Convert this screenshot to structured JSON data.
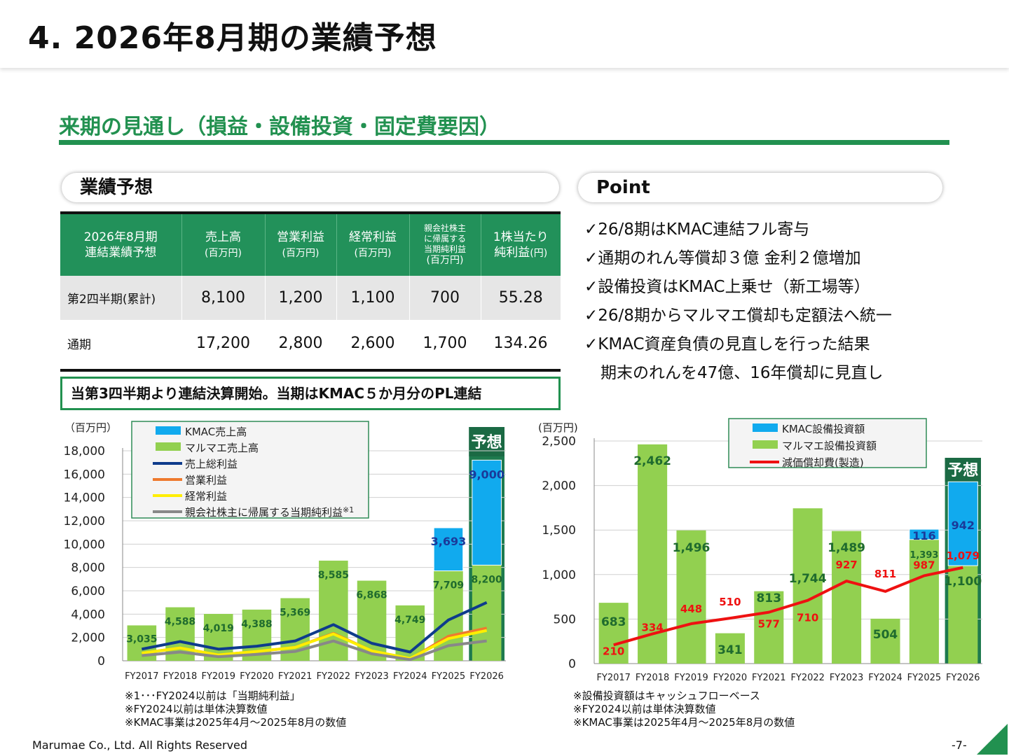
{
  "page_title": "4.  2026年8月期の業績予想",
  "section_title": "来期の見通し（損益・設備投資・固定費要因）",
  "forecast_heading": "業績予想",
  "point_heading": "Point",
  "table": {
    "header": {
      "c0a": "2026年8月期",
      "c0b": "連結業績予想",
      "c1": "売上高",
      "c2": "営業利益",
      "c3": "経常利益",
      "c4a": "親会社株主",
      "c4b": "に帰属する",
      "c4c": "当期純利益",
      "c5a": "1株当たり",
      "c5b": "純利益",
      "unit_million": "(百万円)",
      "unit_yen": "(円)"
    },
    "rows": [
      {
        "label": "第2四半期(累計)",
        "sales": "8,100",
        "op": "1,200",
        "ord": "1,100",
        "net": "700",
        "eps": "55.28"
      },
      {
        "label": "通期",
        "sales": "17,200",
        "op": "2,800",
        "ord": "2,600",
        "net": "1,700",
        "eps": "134.26"
      }
    ]
  },
  "note_box": "当第3四半期より連結決算開始。当期はKMAC５か月分のPL連結",
  "points": [
    "✓26/8期はKMAC連結フル寄与",
    "✓通期のれん等償却３億 金利２億増加",
    "✓設備投資はKMAC上乗せ（新工場等）",
    "✓26/8期からマルマエ償却も定額法へ統一",
    "✓KMAC資産負債の見直しを行った結果",
    "　期末のれんを47億、16年償却に見直し"
  ],
  "footnotes_left": [
    "※1･･･FY2024以前は「当期純利益」",
    "※FY2024以前は単体決算数値",
    "※KMAC事業は2025年4月～2025年8月の数値"
  ],
  "footnotes_right": [
    "※設備投資額はキャッシュフローベース",
    "※FY2024以前は単体決算数値",
    "※KMAC事業は2025年4月～2025年8月の数値"
  ],
  "copyright": "Marumae Co., Ltd. All Rights Reserved",
  "page_number": "-7-",
  "colors": {
    "brand_green": "#229150",
    "bar_green": "#92d050",
    "bar_blue": "#11aaee",
    "forecast_bg": "#1e7a4e"
  },
  "chart_data": [
    {
      "type": "bar",
      "unit": "（百万円）",
      "ylim": [
        0,
        18000
      ],
      "yticks": [
        "0",
        "2,000",
        "4,000",
        "6,000",
        "8,000",
        "10,000",
        "12,000",
        "14,000",
        "16,000",
        "18,000"
      ],
      "categories": [
        "FY2017",
        "FY2018",
        "FY2019",
        "FY2020",
        "FY2021",
        "FY2022",
        "FY2023",
        "FY2024",
        "FY2025",
        "FY2026"
      ],
      "forecast_label": "予想",
      "legend_position": "top-left",
      "series": [
        {
          "name": "KMAC売上高",
          "kind": "bar",
          "color": "#11aaee",
          "values": [
            null,
            null,
            null,
            null,
            null,
            null,
            null,
            null,
            3693,
            9000
          ],
          "labels": [
            "",
            "",
            "",
            "",
            "",
            "",
            "",
            "",
            "3,693",
            "9,000"
          ]
        },
        {
          "name": "マルマエ売上高",
          "kind": "bar",
          "color": "#92d050",
          "values": [
            3035,
            4588,
            4019,
            4388,
            5369,
            8585,
            6868,
            4749,
            7709,
            8200
          ],
          "labels": [
            "3,035",
            "4,588",
            "4,019",
            "4,388",
            "5,369",
            "8,585",
            "6,868",
            "4,749",
            "7,709",
            "8,200"
          ]
        },
        {
          "name": "売上総利益",
          "kind": "line",
          "color": "#0e3b8c",
          "values": [
            1000,
            1650,
            1000,
            1250,
            1700,
            3100,
            1500,
            750,
            3500,
            5000
          ]
        },
        {
          "name": "営業利益",
          "kind": "line",
          "color": "#ee7a2e",
          "values": [
            650,
            1100,
            500,
            800,
            1150,
            2350,
            850,
            150,
            2100,
            2800
          ]
        },
        {
          "name": "経常利益",
          "kind": "line",
          "color": "#ffee00",
          "values": [
            650,
            1100,
            500,
            800,
            1150,
            2300,
            850,
            200,
            1900,
            2600
          ]
        },
        {
          "name": "親会社株主に帰属する当期純利益",
          "legend_note": "※1",
          "kind": "line",
          "color": "#888888",
          "values": [
            450,
            750,
            350,
            550,
            800,
            1700,
            600,
            100,
            1300,
            1700
          ]
        }
      ]
    },
    {
      "type": "bar",
      "unit": "(百万円)",
      "ylim": [
        0,
        2500
      ],
      "yticks": [
        "0",
        "500",
        "1,000",
        "1,500",
        "2,000",
        "2,500"
      ],
      "categories": [
        "FY2017",
        "FY2018",
        "FY2019",
        "FY2020",
        "FY2021",
        "FY2022",
        "FY2023",
        "FY2024",
        "FY2025",
        "FY2026"
      ],
      "forecast_label": "予想",
      "legend_position": "top-center",
      "series": [
        {
          "name": "KMAC設備投資額",
          "kind": "bar",
          "color": "#11aaee",
          "values": [
            null,
            null,
            null,
            null,
            null,
            null,
            null,
            null,
            116,
            942
          ],
          "labels": [
            "",
            "",
            "",
            "",
            "",
            "",
            "",
            "",
            "116",
            "942"
          ]
        },
        {
          "name": "マルマエ設備投資額",
          "kind": "bar",
          "color": "#92d050",
          "values": [
            683,
            2462,
            1496,
            341,
            813,
            1744,
            1489,
            504,
            1393,
            1100
          ],
          "labels": [
            "683",
            "2,462",
            "1,496",
            "341",
            "813",
            "1,744",
            "1,489",
            "504",
            "1,393",
            "1,100"
          ]
        },
        {
          "name": "減価償却費(製造)",
          "kind": "line",
          "color": "#ee1111",
          "values": [
            210,
            334,
            448,
            510,
            577,
            710,
            927,
            811,
            987,
            1079
          ],
          "labels": [
            "210",
            "334",
            "448",
            "510",
            "577",
            "710",
            "927",
            "811",
            "987",
            "1,079"
          ]
        }
      ]
    }
  ]
}
